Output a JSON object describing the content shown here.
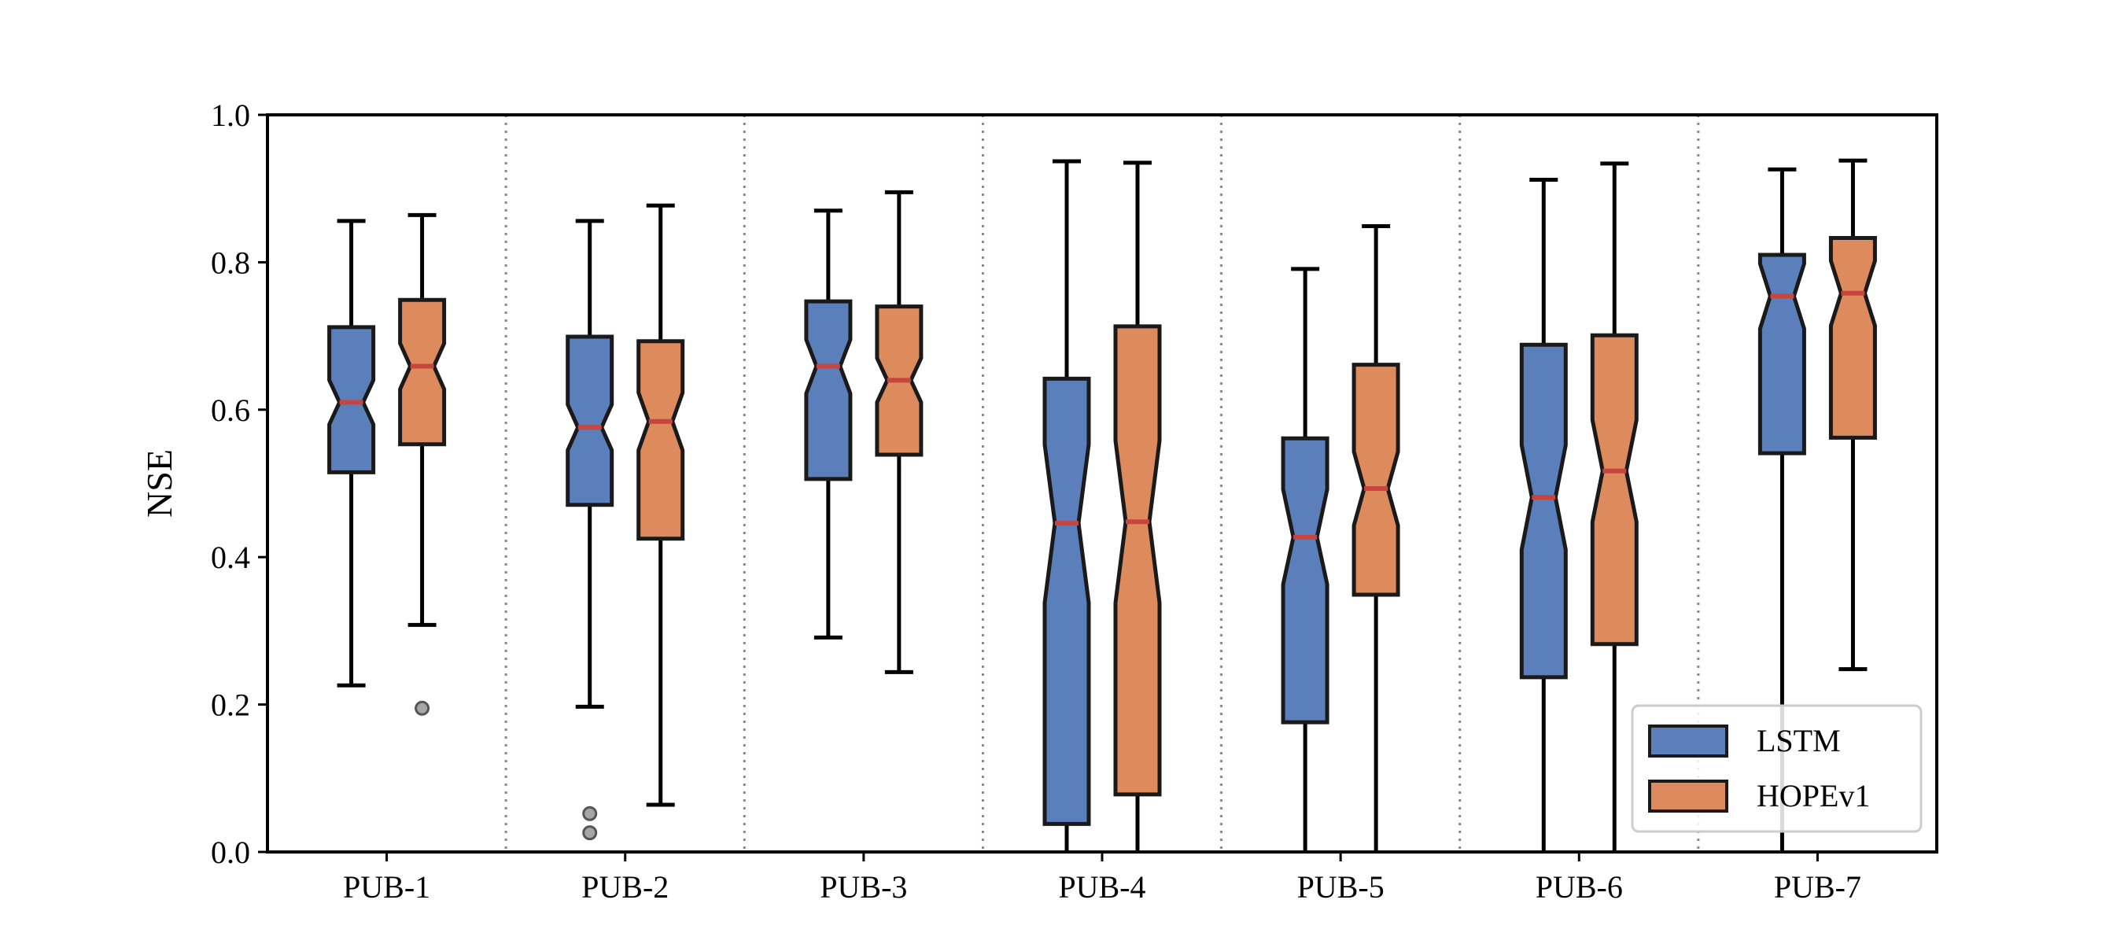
{
  "chart_data": {
    "type": "boxplot",
    "notched": true,
    "title": "",
    "xlabel": "",
    "ylabel": "NSE",
    "ylim": [
      0.0,
      1.0
    ],
    "yticks": [
      "0.0",
      "0.2",
      "0.4",
      "0.6",
      "0.8",
      "1.0"
    ],
    "categories": [
      "PUB-1",
      "PUB-2",
      "PUB-3",
      "PUB-4",
      "PUB-5",
      "PUB-6",
      "PUB-7"
    ],
    "legend_position": "lower-right",
    "category_separators": "dotted-vertical",
    "series": [
      {
        "name": "LSTM",
        "color": "#5b7fbb",
        "boxes": [
          {
            "whisker_low": 0.226,
            "q1": 0.515,
            "median": 0.61,
            "q3": 0.712,
            "whisker_high": 0.856,
            "notch_low": 0.58,
            "notch_high": 0.64,
            "outliers": []
          },
          {
            "whisker_low": 0.197,
            "q1": 0.471,
            "median": 0.576,
            "q3": 0.699,
            "whisker_high": 0.856,
            "notch_low": 0.545,
            "notch_high": 0.607,
            "outliers": [
              0.052,
              0.026
            ]
          },
          {
            "whisker_low": 0.291,
            "q1": 0.506,
            "median": 0.659,
            "q3": 0.747,
            "whisker_high": 0.87,
            "notch_low": 0.622,
            "notch_high": 0.695,
            "outliers": []
          },
          {
            "whisker_low": 0.0,
            "q1": 0.038,
            "median": 0.446,
            "q3": 0.642,
            "whisker_high": 0.937,
            "notch_low": 0.338,
            "notch_high": 0.553,
            "outliers": []
          },
          {
            "whisker_low": 0.0,
            "q1": 0.176,
            "median": 0.427,
            "q3": 0.561,
            "whisker_high": 0.791,
            "notch_low": 0.363,
            "notch_high": 0.492,
            "outliers": []
          },
          {
            "whisker_low": 0.0,
            "q1": 0.237,
            "median": 0.481,
            "q3": 0.688,
            "whisker_high": 0.912,
            "notch_low": 0.41,
            "notch_high": 0.552,
            "outliers": []
          },
          {
            "whisker_low": 0.0,
            "q1": 0.541,
            "median": 0.754,
            "q3": 0.81,
            "whisker_high": 0.926,
            "notch_low": 0.71,
            "notch_high": 0.798,
            "outliers": []
          }
        ]
      },
      {
        "name": "HOPEv1",
        "color": "#dd8a5c",
        "boxes": [
          {
            "whisker_low": 0.308,
            "q1": 0.553,
            "median": 0.659,
            "q3": 0.749,
            "whisker_high": 0.864,
            "notch_low": 0.628,
            "notch_high": 0.69,
            "outliers": [
              0.195
            ]
          },
          {
            "whisker_low": 0.064,
            "q1": 0.425,
            "median": 0.584,
            "q3": 0.693,
            "whisker_high": 0.877,
            "notch_low": 0.545,
            "notch_high": 0.623,
            "outliers": []
          },
          {
            "whisker_low": 0.244,
            "q1": 0.539,
            "median": 0.64,
            "q3": 0.74,
            "whisker_high": 0.895,
            "notch_low": 0.61,
            "notch_high": 0.67,
            "outliers": []
          },
          {
            "whisker_low": 0.0,
            "q1": 0.078,
            "median": 0.448,
            "q3": 0.713,
            "whisker_high": 0.935,
            "notch_low": 0.338,
            "notch_high": 0.558,
            "outliers": []
          },
          {
            "whisker_low": 0.0,
            "q1": 0.349,
            "median": 0.493,
            "q3": 0.661,
            "whisker_high": 0.849,
            "notch_low": 0.443,
            "notch_high": 0.543,
            "outliers": []
          },
          {
            "whisker_low": 0.0,
            "q1": 0.282,
            "median": 0.517,
            "q3": 0.701,
            "whisker_high": 0.934,
            "notch_low": 0.448,
            "notch_high": 0.586,
            "outliers": []
          },
          {
            "whisker_low": 0.248,
            "q1": 0.562,
            "median": 0.758,
            "q3": 0.833,
            "whisker_high": 0.938,
            "notch_low": 0.714,
            "notch_high": 0.802,
            "outliers": []
          }
        ]
      }
    ]
  }
}
